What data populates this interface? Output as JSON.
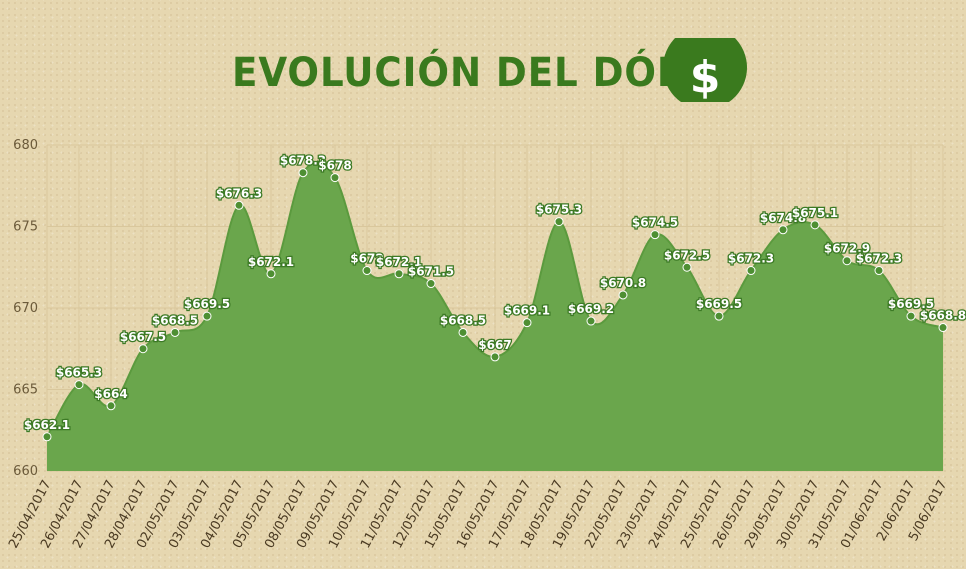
{
  "header": {
    "title": "EVOLUCIÓN DEL DÓLAR",
    "icon": "dollar-icon"
  },
  "colors": {
    "background": "#e6d7b0",
    "title": "#3a7a1e",
    "area_fill": "#6aa64c",
    "line": "#5b9a3e",
    "marker": "#4e8f33",
    "grid": "#d9c79c"
  },
  "chart_data": {
    "type": "area",
    "title": "EVOLUCIÓN DEL DÓLAR",
    "xlabel": "",
    "ylabel": "",
    "ylim": [
      660,
      680
    ],
    "yticks": [
      660,
      665,
      670,
      675,
      680
    ],
    "grid": true,
    "categories": [
      "25/04/2017",
      "26/04/2017",
      "27/04/2017",
      "28/04/2017",
      "02/05/2017",
      "03/05/2017",
      "04/05/2017",
      "05/05/2017",
      "08/05/2017",
      "09/05/2017",
      "10/05/2017",
      "11/05/2017",
      "12/05/2017",
      "15/05/2017",
      "16/05/2017",
      "17/05/2017",
      "18/05/2017",
      "19/05/2017",
      "22/05/2017",
      "23/05/2017",
      "24/05/2017",
      "25/05/2017",
      "26/05/2017",
      "29/05/2017",
      "30/05/2017",
      "31/05/2017",
      "01/06/2017",
      "2/06/2017",
      "5/06/2017"
    ],
    "x_start": "25/04/2017",
    "points": [
      {
        "pos": 0,
        "value": 662.1,
        "label": "$662.1"
      },
      {
        "pos": 1,
        "value": 665.3,
        "label": "$665.3"
      },
      {
        "pos": 2,
        "value": 664,
        "label": "$664"
      },
      {
        "pos": 3,
        "value": 667.5,
        "label": "$667.5"
      },
      {
        "pos": 4,
        "value": 668.5,
        "label": "$668.5"
      },
      {
        "pos": 5,
        "value": 669.5,
        "label": "$669.5"
      },
      {
        "pos": 6,
        "value": 676.3,
        "label": "$676.3"
      },
      {
        "pos": 7,
        "value": 672.1,
        "label": "$672.1"
      },
      {
        "pos": 8,
        "value": 678.3,
        "label": "$678.3"
      },
      {
        "pos": 9,
        "value": 678,
        "label": "$678"
      },
      {
        "pos": 10,
        "value": 672.3,
        "label": "$672"
      },
      {
        "pos": 11,
        "value": 672.1,
        "label": "$672.1"
      },
      {
        "pos": 12,
        "value": 671.5,
        "label": "$671.5"
      },
      {
        "pos": 13,
        "value": 668.5,
        "label": "$668.5"
      },
      {
        "pos": 14,
        "value": 667,
        "label": "$667"
      },
      {
        "pos": 15,
        "value": 669.1,
        "label": "$669.1"
      },
      {
        "pos": 16,
        "value": 675.3,
        "label": "$675.3"
      },
      {
        "pos": 17,
        "value": 669.2,
        "label": "$669.2"
      },
      {
        "pos": 18,
        "value": 670.8,
        "label": "$670.8"
      },
      {
        "pos": 19,
        "value": 674.5,
        "label": "$674.5"
      },
      {
        "pos": 20,
        "value": 672.5,
        "label": "$672.5"
      },
      {
        "pos": 21,
        "value": 669.5,
        "label": "$669.5"
      },
      {
        "pos": 22,
        "value": 672.3,
        "label": "$672.3"
      },
      {
        "pos": 23,
        "value": 674.8,
        "label": "$674.8"
      },
      {
        "pos": 24,
        "value": 675.1,
        "label": "$675.1"
      },
      {
        "pos": 25,
        "value": 672.9,
        "label": "$672.9"
      },
      {
        "pos": 26,
        "value": 672.3,
        "label": "$672.3"
      },
      {
        "pos": 27,
        "value": 669.5,
        "label": "$669.5"
      },
      {
        "pos": 28,
        "value": 668.8,
        "label": "$668.8"
      }
    ],
    "x_end_pos": 28,
    "legend": "none"
  }
}
